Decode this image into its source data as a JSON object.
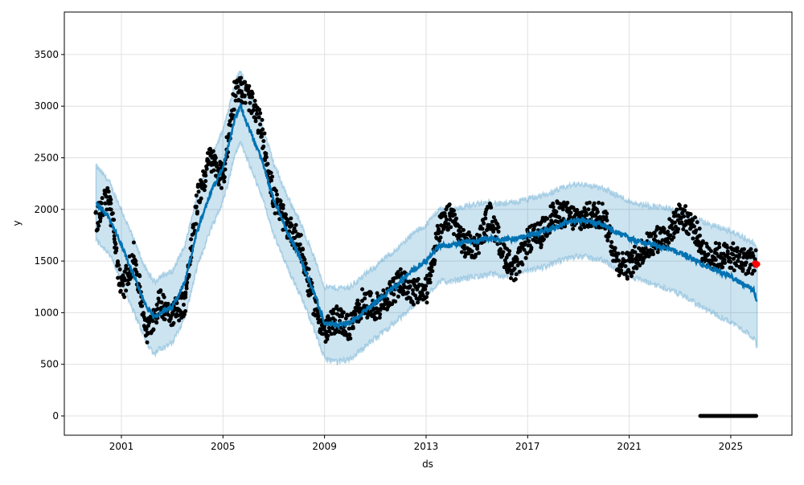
{
  "chart_data": {
    "type": "line",
    "title": "",
    "xlabel": "ds",
    "ylabel": "y",
    "xlim": [
      1998.2,
      2026.85
    ],
    "ylim": [
      -180,
      3900
    ],
    "grid": true,
    "x_ticks": [
      2001,
      2005,
      2009,
      2013,
      2017,
      2021,
      2025
    ],
    "x_tick_labels": [
      "2001",
      "2005",
      "2009",
      "2013",
      "2017",
      "2021",
      "2025"
    ],
    "y_ticks": [
      0,
      500,
      1000,
      1500,
      2000,
      2500,
      3000,
      3500
    ],
    "y_tick_labels": [
      "0",
      "500",
      "1000",
      "1500",
      "2000",
      "2500",
      "3000",
      "3500"
    ],
    "colors": {
      "forecast": "#0072B2",
      "band": "#0072B2",
      "actual": "#000000",
      "future": "#ff0000"
    },
    "forecast": {
      "x": [
        2000.0,
        2000.5,
        2001.0,
        2001.5,
        2002.0,
        2002.3,
        2002.5,
        2003.0,
        2003.5,
        2004.0,
        2004.5,
        2005.0,
        2005.5,
        2005.7,
        2006.0,
        2006.5,
        2007.0,
        2007.5,
        2008.0,
        2008.5,
        2009.0,
        2009.5,
        2010.0,
        2010.5,
        2011.0,
        2011.5,
        2012.0,
        2012.5,
        2013.0,
        2013.5,
        2014.0,
        2014.5,
        2015.0,
        2015.5,
        2016.0,
        2016.5,
        2017.0,
        2017.5,
        2018.0,
        2018.5,
        2019.0,
        2019.5,
        2020.0,
        2020.5,
        2021.0,
        2021.5,
        2022.0,
        2022.5,
        2023.0,
        2023.5,
        2024.0,
        2024.5,
        2025.0,
        2025.5,
        2025.9,
        2026.05
      ],
      "yhat": [
        2060,
        1930,
        1650,
        1350,
        1050,
        950,
        1000,
        1050,
        1300,
        1800,
        2150,
        2420,
        2900,
        3000,
        2800,
        2500,
        2100,
        1800,
        1550,
        1250,
        900,
        880,
        900,
        1000,
        1100,
        1200,
        1300,
        1420,
        1500,
        1650,
        1650,
        1680,
        1700,
        1720,
        1700,
        1720,
        1750,
        1780,
        1820,
        1870,
        1900,
        1880,
        1850,
        1780,
        1720,
        1680,
        1650,
        1620,
        1580,
        1520,
        1450,
        1400,
        1350,
        1280,
        1220,
        1100
      ],
      "yhat_lower": [
        1700,
        1580,
        1300,
        1000,
        700,
        600,
        650,
        700,
        950,
        1450,
        1800,
        2070,
        2550,
        2650,
        2450,
        2150,
        1750,
        1450,
        1200,
        900,
        550,
        520,
        550,
        650,
        750,
        850,
        950,
        1070,
        1150,
        1300,
        1300,
        1330,
        1350,
        1370,
        1350,
        1370,
        1400,
        1430,
        1470,
        1520,
        1550,
        1530,
        1500,
        1420,
        1360,
        1310,
        1270,
        1230,
        1180,
        1110,
        1030,
        970,
        910,
        830,
        760,
        650
      ],
      "yhat_upper": [
        2420,
        2280,
        2000,
        1700,
        1400,
        1300,
        1350,
        1400,
        1650,
        2150,
        2500,
        2770,
        3250,
        3350,
        3150,
        2850,
        2450,
        2150,
        1900,
        1600,
        1250,
        1240,
        1250,
        1350,
        1450,
        1550,
        1650,
        1770,
        1850,
        2000,
        2000,
        2030,
        2050,
        2070,
        2050,
        2070,
        2100,
        2130,
        2170,
        2220,
        2250,
        2230,
        2200,
        2140,
        2080,
        2050,
        2030,
        2010,
        1980,
        1930,
        1870,
        1830,
        1790,
        1730,
        1680,
        1600
      ]
    },
    "actual": {
      "x": [
        2000.0,
        2000.5,
        2001.0,
        2001.5,
        2002.0,
        2002.5,
        2003.0,
        2003.5,
        2004.0,
        2004.5,
        2005.0,
        2005.5,
        2006.0,
        2006.5,
        2007.0,
        2007.5,
        2008.0,
        2008.5,
        2009.0,
        2009.5,
        2010.0,
        2010.5,
        2011.0,
        2011.5,
        2012.0,
        2012.5,
        2013.0,
        2013.5,
        2014.0,
        2014.5,
        2015.0,
        2015.5,
        2016.0,
        2016.5,
        2017.0,
        2017.5,
        2018.0,
        2018.5,
        2019.0,
        2019.5,
        2020.0,
        2020.5,
        2021.0,
        2021.5,
        2022.0,
        2022.5,
        2023.0,
        2023.5,
        2024.0,
        2024.5,
        2025.0,
        2025.5,
        2026.0
      ],
      "y": [
        1900,
        2150,
        1200,
        1550,
        800,
        1100,
        1000,
        1100,
        2100,
        2500,
        2300,
        3200,
        3100,
        2800,
        2100,
        1850,
        1700,
        1150,
        800,
        950,
        850,
        1100,
        1050,
        1150,
        1300,
        1200,
        1200,
        1800,
        1950,
        1650,
        1650,
        1950,
        1600,
        1400,
        1700,
        1750,
        1950,
        1950,
        1900,
        1950,
        1950,
        1500,
        1450,
        1600,
        1700,
        1750,
        1950,
        1850,
        1550,
        1550,
        1550,
        1500,
        1500
      ]
    },
    "actual_zero_range": [
      2023.8,
      2026.0
    ],
    "future_points": {
      "x": [
        2025.95,
        2026.0,
        2026.05
      ],
      "y": [
        1480,
        1460,
        1470
      ]
    }
  }
}
